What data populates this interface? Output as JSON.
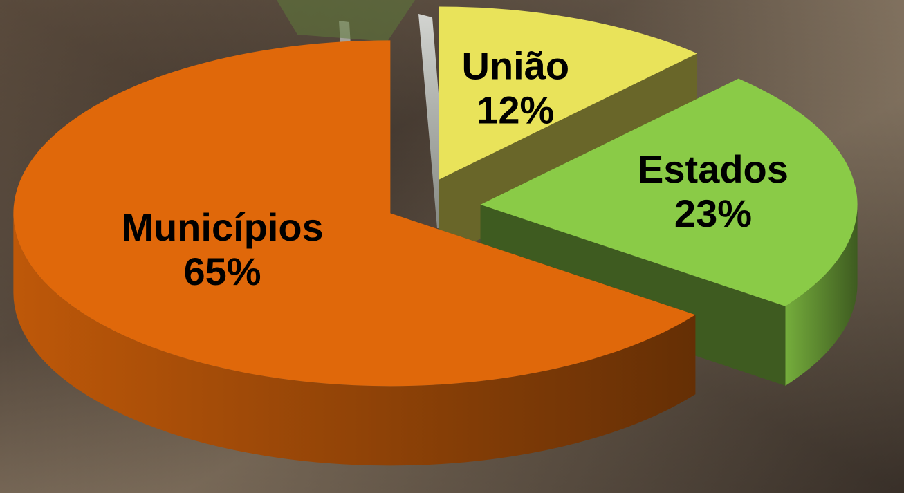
{
  "chart_data": {
    "type": "pie3d",
    "categories": [
      "União",
      "Estados",
      "Municípios"
    ],
    "values": [
      12,
      23,
      65
    ],
    "value_labels": [
      "12%",
      "23%",
      "65%"
    ],
    "colors": [
      "#e9e35a",
      "#8acb47",
      "#e0680a"
    ]
  }
}
